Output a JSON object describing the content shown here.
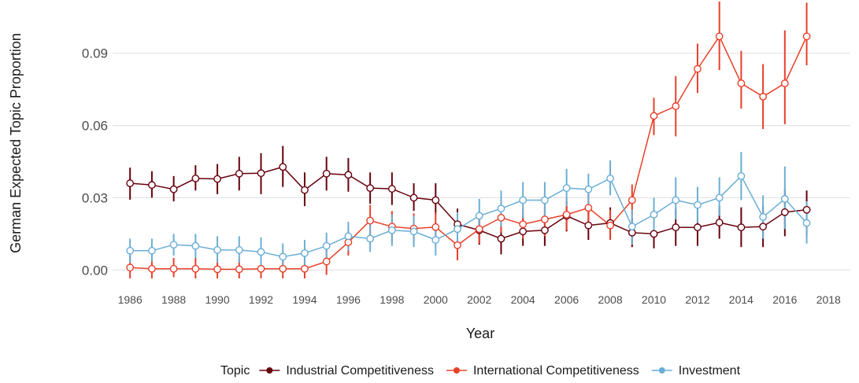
{
  "chart_data": {
    "type": "line",
    "xlabel": "Year",
    "ylabel": "German Expected Topic Proportion",
    "xlim": [
      1985.2,
      2019.0
    ],
    "ylim": [
      -0.0035,
      0.1095
    ],
    "x_ticks": [
      "1986",
      "1988",
      "1990",
      "1992",
      "1994",
      "1996",
      "1998",
      "2000",
      "2002",
      "2004",
      "2006",
      "2008",
      "2010",
      "2012",
      "2014",
      "2016",
      "2018"
    ],
    "y_ticks": [
      "0.00",
      "0.03",
      "0.06",
      "0.09"
    ],
    "grid": true,
    "error_bars": true,
    "legend": {
      "title": "Topic",
      "position": "bottom"
    },
    "series": [
      {
        "name": "Industrial Competitiveness",
        "color": "#67000d",
        "x": [
          1986,
          1987,
          1988,
          1989,
          1990,
          1991,
          1992,
          1993,
          1994,
          1995,
          1996,
          1997,
          1998,
          1999,
          2000,
          2001,
          2002,
          2003,
          2004,
          2005,
          2006,
          2007,
          2008,
          2009,
          2010,
          2011,
          2012,
          2013,
          2014,
          2015,
          2016,
          2017
        ],
        "y": [
          0.036,
          0.0353,
          0.0335,
          0.038,
          0.0378,
          0.04,
          0.0402,
          0.0428,
          0.0332,
          0.04,
          0.0395,
          0.034,
          0.0337,
          0.03,
          0.029,
          0.019,
          0.0165,
          0.013,
          0.016,
          0.0165,
          0.0225,
          0.0185,
          0.0195,
          0.0155,
          0.015,
          0.0177,
          0.0177,
          0.0197,
          0.0177,
          0.018,
          0.024,
          0.025
        ],
        "y_low": [
          0.0292,
          0.03,
          0.0285,
          0.033,
          0.0315,
          0.033,
          0.0315,
          0.0345,
          0.0265,
          0.033,
          0.0325,
          0.0275,
          0.027,
          0.0245,
          0.023,
          0.013,
          0.0105,
          0.0065,
          0.01,
          0.01,
          0.016,
          0.0125,
          0.013,
          0.0095,
          0.009,
          0.01,
          0.01,
          0.013,
          0.0095,
          0.0095,
          0.014,
          0.014
        ],
        "y_high": [
          0.0425,
          0.041,
          0.039,
          0.0435,
          0.044,
          0.047,
          0.0485,
          0.0515,
          0.0405,
          0.047,
          0.0465,
          0.0405,
          0.0405,
          0.036,
          0.036,
          0.0255,
          0.023,
          0.0195,
          0.0225,
          0.023,
          0.0285,
          0.0245,
          0.026,
          0.0215,
          0.021,
          0.0255,
          0.0255,
          0.0265,
          0.026,
          0.0265,
          0.0335,
          0.033
        ]
      },
      {
        "name": "International Competitiveness",
        "color": "#e8402a",
        "x": [
          1986,
          1987,
          1988,
          1989,
          1990,
          1991,
          1992,
          1993,
          1994,
          1995,
          1996,
          1997,
          1998,
          1999,
          2000,
          2001,
          2002,
          2003,
          2004,
          2005,
          2006,
          2007,
          2008,
          2009,
          2010,
          2011,
          2012,
          2013,
          2014,
          2015,
          2016,
          2017
        ],
        "y": [
          0.001,
          0.0005,
          0.0005,
          0.0005,
          0.0003,
          0.0003,
          0.0005,
          0.0005,
          0.0005,
          0.0035,
          0.0115,
          0.0205,
          0.018,
          0.0172,
          0.0178,
          0.0103,
          0.017,
          0.0217,
          0.019,
          0.021,
          0.023,
          0.0258,
          0.0185,
          0.029,
          0.064,
          0.068,
          0.0835,
          0.097,
          0.0775,
          0.072,
          0.0775,
          0.097
        ],
        "y_low": [
          -0.0035,
          -0.0035,
          -0.003,
          -0.0035,
          -0.0035,
          -0.0035,
          -0.0035,
          -0.0035,
          -0.0035,
          -0.002,
          0.006,
          0.0145,
          0.0115,
          0.011,
          0.0115,
          0.004,
          0.011,
          0.0155,
          0.013,
          0.014,
          0.0165,
          0.0195,
          0.0125,
          0.0225,
          0.056,
          0.0555,
          0.0735,
          0.083,
          0.067,
          0.0585,
          0.0605,
          0.085
        ],
        "y_high": [
          0.006,
          0.0045,
          0.005,
          0.005,
          0.0045,
          0.0045,
          0.005,
          0.005,
          0.005,
          0.009,
          0.017,
          0.027,
          0.0245,
          0.0235,
          0.024,
          0.0165,
          0.0235,
          0.028,
          0.0255,
          0.0275,
          0.03,
          0.032,
          0.025,
          0.0355,
          0.0715,
          0.0805,
          0.094,
          0.1115,
          0.091,
          0.0855,
          0.0995,
          0.111
        ]
      },
      {
        "name": "Investment",
        "color": "#6aaed6",
        "x": [
          1986,
          1987,
          1988,
          1989,
          1990,
          1991,
          1992,
          1993,
          1994,
          1995,
          1996,
          1997,
          1998,
          1999,
          2000,
          2001,
          2002,
          2003,
          2004,
          2005,
          2006,
          2007,
          2008,
          2009,
          2010,
          2011,
          2012,
          2013,
          2014,
          2015,
          2016,
          2017
        ],
        "y": [
          0.008,
          0.008,
          0.0105,
          0.01,
          0.0083,
          0.0083,
          0.0075,
          0.0055,
          0.007,
          0.01,
          0.014,
          0.013,
          0.0165,
          0.016,
          0.0125,
          0.017,
          0.0225,
          0.0255,
          0.029,
          0.029,
          0.034,
          0.0335,
          0.038,
          0.018,
          0.023,
          0.029,
          0.027,
          0.03,
          0.039,
          0.022,
          0.0295,
          0.0195
        ],
        "y_low": [
          0.003,
          0.0035,
          0.006,
          0.005,
          0.003,
          0.003,
          0.002,
          0.0005,
          0.002,
          0.0045,
          0.008,
          0.0075,
          0.01,
          0.0095,
          0.006,
          0.0105,
          0.016,
          0.018,
          0.0215,
          0.0215,
          0.0265,
          0.0265,
          0.031,
          0.0105,
          0.016,
          0.021,
          0.0195,
          0.0225,
          0.029,
          0.013,
          0.017,
          0.011
        ],
        "y_high": [
          0.013,
          0.013,
          0.015,
          0.015,
          0.014,
          0.014,
          0.0135,
          0.011,
          0.0125,
          0.0155,
          0.02,
          0.019,
          0.023,
          0.0225,
          0.019,
          0.024,
          0.0295,
          0.033,
          0.0365,
          0.0365,
          0.042,
          0.04,
          0.0455,
          0.025,
          0.03,
          0.0385,
          0.0345,
          0.0385,
          0.049,
          0.031,
          0.043,
          0.0285
        ]
      }
    ]
  }
}
